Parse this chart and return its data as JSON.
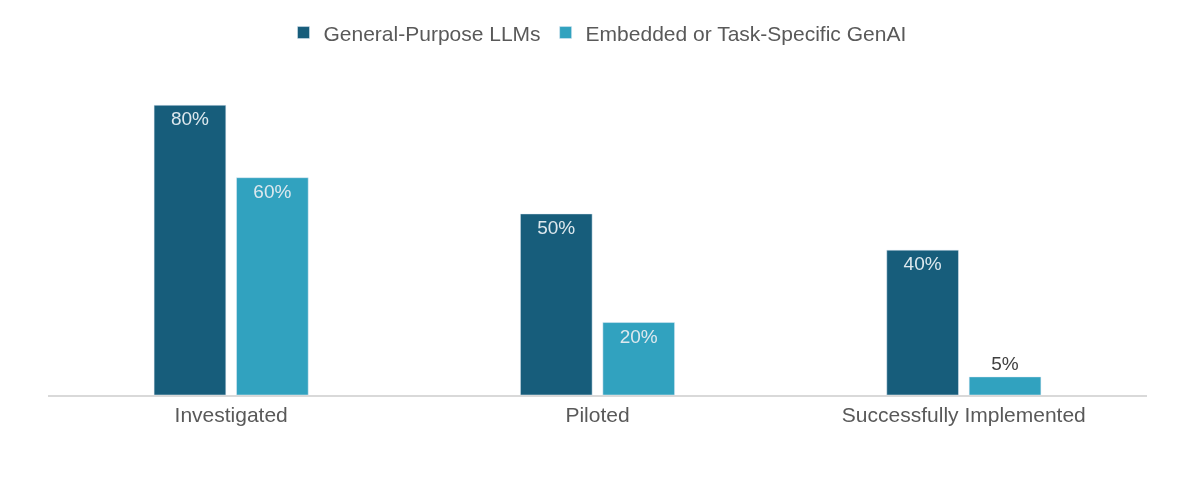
{
  "chart_data": {
    "type": "bar",
    "categories": [
      "Investigated",
      "Piloted",
      "Successfully Implemented"
    ],
    "series": [
      {
        "name": "General-Purpose LLMs",
        "color": "#175d7b",
        "values": [
          80,
          50,
          40
        ],
        "value_labels": [
          "80%",
          "50%",
          "40%"
        ]
      },
      {
        "name": "Embedded or Task-Specific GenAI",
        "color": "#31a2bf",
        "values": [
          60,
          20,
          5
        ],
        "value_labels": [
          "60%",
          "20%",
          "5%"
        ]
      }
    ],
    "legend": "top"
  }
}
